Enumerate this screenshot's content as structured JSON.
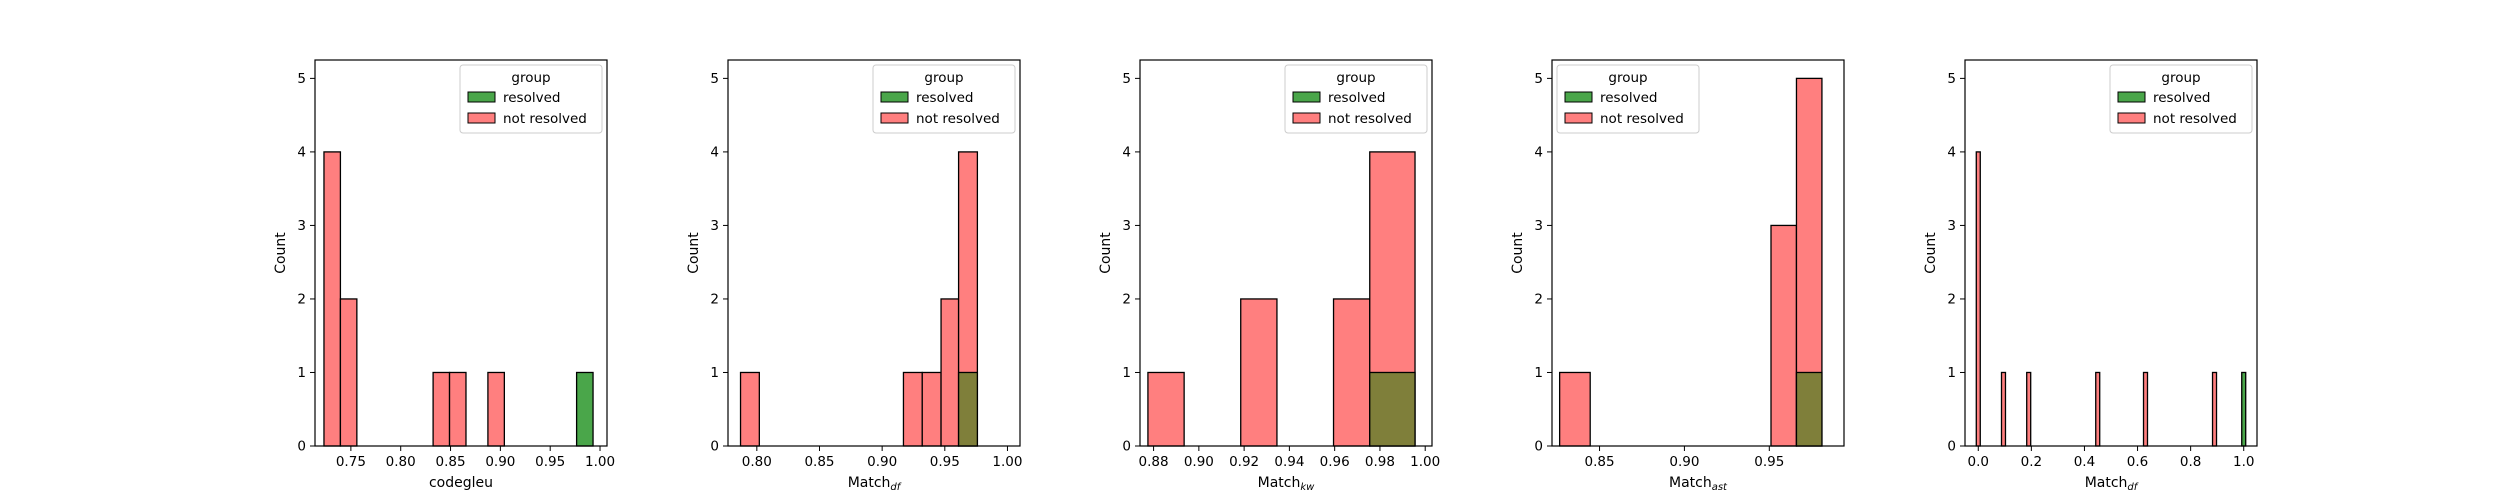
{
  "legend": {
    "title": "group",
    "entries": [
      {
        "label": "resolved",
        "color": "#4aa64a"
      },
      {
        "label": "not resolved",
        "color": "#ff7f7f"
      }
    ]
  },
  "colors": {
    "resolved": "#4aa64a",
    "not_resolved": "#ff7f7f",
    "overlap": "#7f7f3a"
  },
  "chart_data": [
    {
      "type": "bar",
      "xlabel": "codegleu",
      "ylabel": "Count",
      "xlim": [
        0.714,
        1.007
      ],
      "ylim": [
        0,
        5.25
      ],
      "xticks": [
        0.75,
        0.8,
        0.85,
        0.9,
        0.95,
        1.0
      ],
      "xticklabels": [
        "0.75",
        "0.80",
        "0.85",
        "0.90",
        "0.95",
        "1.00"
      ],
      "yticks": [
        0,
        1,
        2,
        3,
        4,
        5
      ],
      "legend_position": "top-right",
      "bins": [
        {
          "x0": 0.723,
          "x1": 0.7395,
          "not_resolved": 4,
          "resolved": 0
        },
        {
          "x0": 0.7395,
          "x1": 0.756,
          "not_resolved": 2,
          "resolved": 0
        },
        {
          "x0": 0.8325,
          "x1": 0.849,
          "not_resolved": 1,
          "resolved": 0
        },
        {
          "x0": 0.849,
          "x1": 0.8655,
          "not_resolved": 1,
          "resolved": 0
        },
        {
          "x0": 0.8875,
          "x1": 0.904,
          "not_resolved": 1,
          "resolved": 0
        },
        {
          "x0": 0.9765,
          "x1": 0.993,
          "not_resolved": 0,
          "resolved": 1
        }
      ]
    },
    {
      "type": "bar",
      "xlabel_main": "Match",
      "xlabel_sub": "df",
      "ylabel": "Count",
      "xlim": [
        0.777,
        1.01
      ],
      "ylim": [
        0,
        5.25
      ],
      "xticks": [
        0.8,
        0.85,
        0.9,
        0.95,
        1.0
      ],
      "xticklabels": [
        "0.80",
        "0.85",
        "0.90",
        "0.95",
        "1.00"
      ],
      "yticks": [
        0,
        1,
        2,
        3,
        4,
        5
      ],
      "legend_position": "top-right",
      "bins": [
        {
          "x0": 0.787,
          "x1": 0.802,
          "not_resolved": 1,
          "resolved": 0
        },
        {
          "x0": 0.917,
          "x1": 0.932,
          "not_resolved": 1,
          "resolved": 0
        },
        {
          "x0": 0.932,
          "x1": 0.947,
          "not_resolved": 1,
          "resolved": 0
        },
        {
          "x0": 0.947,
          "x1": 0.961,
          "not_resolved": 2,
          "resolved": 0
        },
        {
          "x0": 0.961,
          "x1": 0.976,
          "not_resolved": 4,
          "resolved": 1
        }
      ]
    },
    {
      "type": "bar",
      "xlabel_main": "Match",
      "xlabel_sub": "kw",
      "ylabel": "Count",
      "xlim": [
        0.874,
        1.003
      ],
      "ylim": [
        0,
        5.25
      ],
      "xticks": [
        0.88,
        0.9,
        0.92,
        0.94,
        0.96,
        0.98,
        1.0
      ],
      "xticklabels": [
        "0.88",
        "0.90",
        "0.92",
        "0.94",
        "0.96",
        "0.98",
        "1.00"
      ],
      "yticks": [
        0,
        1,
        2,
        3,
        4,
        5
      ],
      "legend_position": "top-right",
      "bins": [
        {
          "x0": 0.8775,
          "x1": 0.8935,
          "not_resolved": 1,
          "resolved": 0
        },
        {
          "x0": 0.9185,
          "x1": 0.9345,
          "not_resolved": 2,
          "resolved": 0
        },
        {
          "x0": 0.9595,
          "x1": 0.9755,
          "not_resolved": 2,
          "resolved": 0
        },
        {
          "x0": 0.9755,
          "x1": 0.9955,
          "not_resolved": 4,
          "resolved": 1
        }
      ]
    },
    {
      "type": "bar",
      "xlabel_main": "Match",
      "xlabel_sub": "ast",
      "ylabel": "Count",
      "xlim": [
        0.822,
        0.994
      ],
      "ylim": [
        0,
        5.25
      ],
      "xticks": [
        0.85,
        0.9,
        0.95
      ],
      "xticklabels": [
        "0.85",
        "0.90",
        "0.95"
      ],
      "yticks": [
        0,
        1,
        2,
        3,
        4,
        5
      ],
      "legend_position": "top-left",
      "bins": [
        {
          "x0": 0.8265,
          "x1": 0.8445,
          "not_resolved": 1,
          "resolved": 0
        },
        {
          "x0": 0.951,
          "x1": 0.966,
          "not_resolved": 3,
          "resolved": 0
        },
        {
          "x0": 0.966,
          "x1": 0.981,
          "not_resolved": 5,
          "resolved": 1
        }
      ]
    },
    {
      "type": "bar",
      "xlabel_main": "Match",
      "xlabel_sub": "df",
      "ylabel": "Count",
      "xlim": [
        -0.05,
        1.05
      ],
      "ylim": [
        0,
        5.25
      ],
      "xticks": [
        0.0,
        0.2,
        0.4,
        0.6,
        0.8,
        1.0
      ],
      "xticklabels": [
        "0.0",
        "0.2",
        "0.4",
        "0.6",
        "0.8",
        "1.0"
      ],
      "yticks": [
        0,
        1,
        2,
        3,
        4,
        5
      ],
      "legend_position": "top-right",
      "bins": [
        {
          "x0": -0.0075,
          "x1": 0.0075,
          "not_resolved": 4,
          "resolved": 0
        },
        {
          "x0": 0.0875,
          "x1": 0.1025,
          "not_resolved": 1,
          "resolved": 0
        },
        {
          "x0": 0.1825,
          "x1": 0.1975,
          "not_resolved": 1,
          "resolved": 0
        },
        {
          "x0": 0.4425,
          "x1": 0.4575,
          "not_resolved": 1,
          "resolved": 0
        },
        {
          "x0": 0.6225,
          "x1": 0.6375,
          "not_resolved": 1,
          "resolved": 0
        },
        {
          "x0": 0.8825,
          "x1": 0.8975,
          "not_resolved": 1,
          "resolved": 0
        },
        {
          "x0": 0.9925,
          "x1": 1.0075,
          "not_resolved": 0,
          "resolved": 1
        }
      ]
    }
  ]
}
